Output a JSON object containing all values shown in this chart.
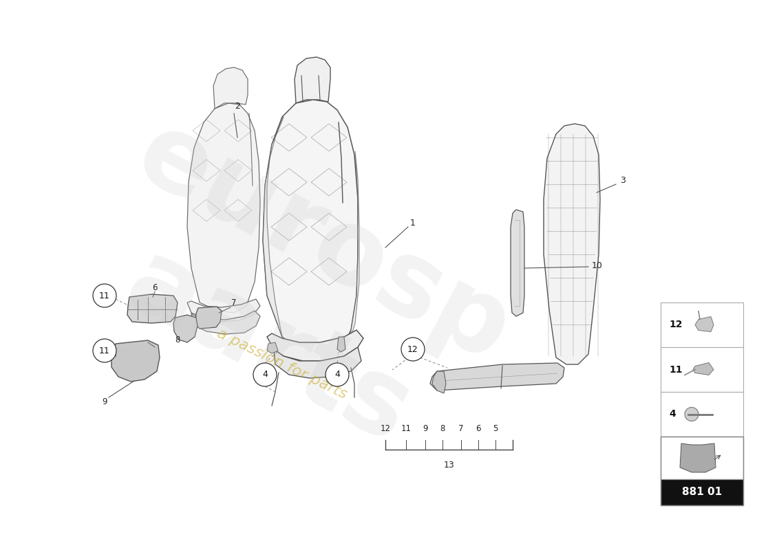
{
  "bg_color": "#ffffff",
  "lc": "#555555",
  "lc_thin": "#888888",
  "watermark_gray": "#d0d0d0",
  "watermark_yellow": "#c8a820",
  "badge_bg": "#111111",
  "badge_text": "#ffffff",
  "badge_number": "881 01",
  "fig_w": 11.0,
  "fig_h": 8.0,
  "dpi": 100,
  "legend_nums": [
    "12",
    "11",
    "4"
  ],
  "circled_label_r": 0.22,
  "label_fs": 9
}
